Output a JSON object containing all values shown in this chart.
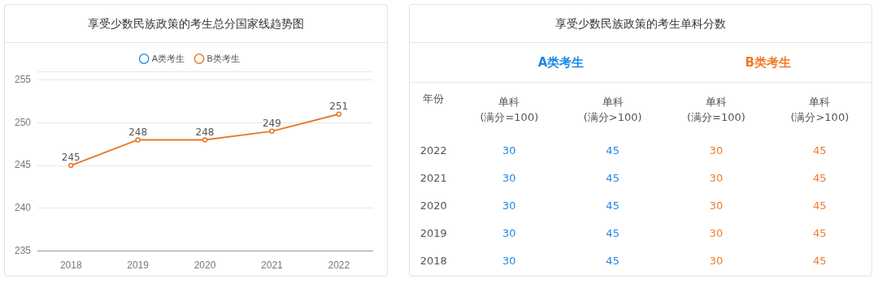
{
  "chart_data": [
    {
      "type": "line",
      "title": "享受少数民族政策的考生总分国家线趋势图",
      "categories": [
        "2018",
        "2019",
        "2020",
        "2021",
        "2022"
      ],
      "series": [
        {
          "name": "A类考生",
          "color": "#2196f3",
          "values": [
            null,
            null,
            null,
            null,
            null
          ]
        },
        {
          "name": "B类考生",
          "color": "#e8792b",
          "values": [
            245,
            248,
            248,
            249,
            251
          ]
        }
      ],
      "ylim": [
        235,
        256
      ],
      "yticks": [
        235,
        240,
        245,
        250,
        255
      ],
      "grid": "y",
      "legend": "top",
      "marker": "circle",
      "data_labels": true
    },
    {
      "type": "heatmap",
      "title": "享受少数民族政策的考生单科分数",
      "ylabel": "年份",
      "categories": [
        "单科\n(满分=100)",
        "单科\n(满分>100)",
        "单科\n(满分=100)",
        "单科\n(满分>100)"
      ],
      "y_categories": [
        "2022",
        "2021",
        "2020",
        "2019",
        "2018"
      ],
      "cells": [
        [
          30,
          45,
          30,
          45
        ],
        [
          30,
          45,
          30,
          45
        ],
        [
          30,
          45,
          30,
          45
        ],
        [
          30,
          45,
          30,
          45
        ],
        [
          30,
          45,
          30,
          45
        ]
      ],
      "colors": [
        "#1e88e5",
        "#1e88e5",
        "#f07a2a",
        "#f07a2a"
      ],
      "annotations": [
        "A类考生",
        "B类考生"
      ],
      "data_labels": true
    }
  ]
}
